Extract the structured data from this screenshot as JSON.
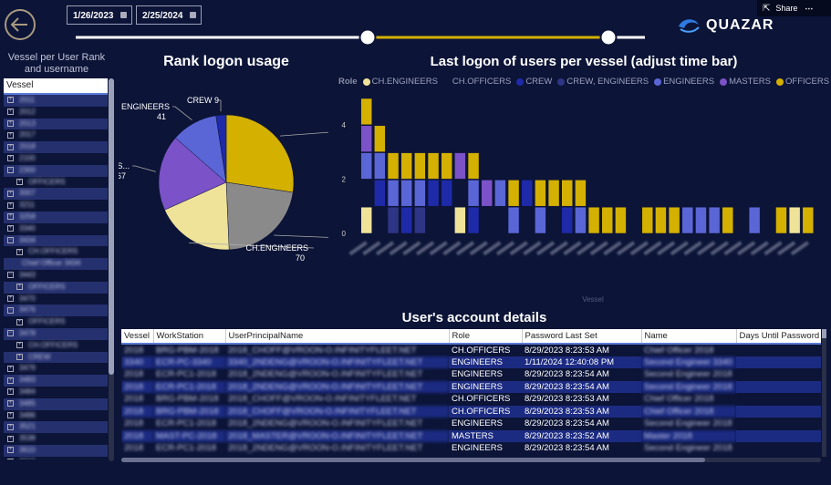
{
  "header": {
    "date_from": "1/26/2023",
    "date_to": "2/25/2024",
    "share_label": "Share",
    "more_label": "⋯",
    "logo_text": "QUAZAR",
    "timeline_start_fraction": 0.51,
    "timeline_end_fraction": 0.94
  },
  "slicer": {
    "title": "Vessel per User Rank and username",
    "header": "Vessel",
    "items": [
      {
        "label": "2011",
        "level": 0,
        "expanded": false
      },
      {
        "label": "2012",
        "level": 0,
        "expanded": false
      },
      {
        "label": "2013",
        "level": 0,
        "expanded": false
      },
      {
        "label": "2017",
        "level": 0,
        "expanded": false
      },
      {
        "label": "2018",
        "level": 0,
        "expanded": false
      },
      {
        "label": "2100",
        "level": 0,
        "expanded": false
      },
      {
        "label": "2300",
        "level": 0,
        "expanded": true
      },
      {
        "label": "OFFICERS",
        "level": 1,
        "expanded": false
      },
      {
        "label": "3007",
        "level": 0,
        "expanded": false
      },
      {
        "label": "3211",
        "level": 0,
        "expanded": false
      },
      {
        "label": "3258",
        "level": 0,
        "expanded": false
      },
      {
        "label": "3340",
        "level": 0,
        "expanded": false
      },
      {
        "label": "3434",
        "level": 0,
        "expanded": true
      },
      {
        "label": "CH.OFFICERS",
        "level": 1,
        "expanded": false
      },
      {
        "label": "Chief Officer 3434",
        "level": 2,
        "expanded": false
      },
      {
        "label": "3443",
        "level": 0,
        "expanded": true
      },
      {
        "label": "OFFICERS",
        "level": 1,
        "expanded": false
      },
      {
        "label": "3470",
        "level": 0,
        "expanded": false
      },
      {
        "label": "3476",
        "level": 0,
        "expanded": true
      },
      {
        "label": "OFFICERS",
        "level": 1,
        "expanded": false
      },
      {
        "label": "3478",
        "level": 0,
        "expanded": true
      },
      {
        "label": "CH.OFFICERS",
        "level": 1,
        "expanded": false
      },
      {
        "label": "CREW",
        "level": 1,
        "expanded": false
      },
      {
        "label": "3479",
        "level": 0,
        "expanded": false
      },
      {
        "label": "3483",
        "level": 0,
        "expanded": false
      },
      {
        "label": "3484",
        "level": 0,
        "expanded": false
      },
      {
        "label": "3485",
        "level": 0,
        "expanded": false
      },
      {
        "label": "3486",
        "level": 0,
        "expanded": false
      },
      {
        "label": "3521",
        "level": 0,
        "expanded": false
      },
      {
        "label": "3538",
        "level": 0,
        "expanded": false
      },
      {
        "label": "3610",
        "level": 0,
        "expanded": false
      },
      {
        "label": "3615",
        "level": 0,
        "expanded": false
      }
    ]
  },
  "colors": {
    "OFFICERS": "#d4b000",
    "CH.OFFICERS": "#8a8a8a",
    "CH.ENGINEERS": "#efe39a",
    "MASTERS": "#7b52c8",
    "ENGINEERS": "#5b66d6",
    "CREW": "#1e2aa8",
    "CREW, ENGINEERS": "#2f3585"
  },
  "chart_data": [
    {
      "type": "pie",
      "title": "Rank logon usage",
      "slices": [
        {
          "label": "OFFICERS",
          "display": "OFFICERS",
          "value": 101
        },
        {
          "label": "CH.OFFICERS",
          "display": "CH.OFFICERS",
          "value": 81
        },
        {
          "label": "CH.ENGINEERS",
          "display": "CH.ENGINEERS",
          "value": 70
        },
        {
          "label": "MASTERS",
          "display": "MAS...",
          "value": 67
        },
        {
          "label": "ENGINEERS",
          "display": "ENGINEERS",
          "value": 41
        },
        {
          "label": "CREW",
          "display": "CREW 9",
          "value": 9
        }
      ]
    },
    {
      "type": "bar",
      "title": "Last logon of users per vessel (adjust time bar)",
      "legend_title": "Role",
      "legend": [
        "CH.ENGINEERS",
        "CH.OFFICERS",
        "CREW",
        "CREW, ENGINEERS",
        "ENGINEERS",
        "MASTERS",
        "OFFICERS"
      ],
      "xlabel": "Vessel",
      "ylim": [
        0,
        5
      ],
      "yticks": [
        0,
        2,
        4
      ],
      "columns": [
        [
          "CH.ENGINEERS",
          null,
          "ENGINEERS",
          "MASTERS",
          "OFFICERS"
        ],
        [
          null,
          "CREW",
          "ENGINEERS",
          "OFFICERS"
        ],
        [
          "CREW, ENGINEERS",
          "ENGINEERS",
          "OFFICERS"
        ],
        [
          "CREW",
          "ENGINEERS",
          "OFFICERS"
        ],
        [
          "CREW, ENGINEERS",
          "ENGINEERS",
          "OFFICERS"
        ],
        [
          null,
          "CREW",
          "OFFICERS"
        ],
        [
          null,
          "CREW",
          "OFFICERS"
        ],
        [
          "CH.ENGINEERS",
          null,
          "MASTERS"
        ],
        [
          "CREW",
          "ENGINEERS",
          "OFFICERS"
        ],
        [
          null,
          "MASTERS"
        ],
        [
          null,
          "ENGINEERS"
        ],
        [
          "ENGINEERS",
          "OFFICERS"
        ],
        [
          null,
          "CREW"
        ],
        [
          "ENGINEERS",
          "OFFICERS"
        ],
        [
          null,
          "OFFICERS"
        ],
        [
          "CREW",
          "OFFICERS"
        ],
        [
          "ENGINEERS",
          "OFFICERS"
        ],
        [
          "OFFICERS"
        ],
        [
          "OFFICERS"
        ],
        [
          "OFFICERS"
        ],
        [],
        [
          "OFFICERS"
        ],
        [
          "OFFICERS"
        ],
        [
          "OFFICERS"
        ],
        [
          "ENGINEERS"
        ],
        [
          "ENGINEERS"
        ],
        [
          "ENGINEERS"
        ],
        [
          "OFFICERS"
        ],
        [],
        [
          "ENGINEERS"
        ],
        [],
        [
          "OFFICERS"
        ],
        [
          "CH.ENGINEERS"
        ],
        [
          "OFFICERS"
        ]
      ]
    }
  ],
  "table": {
    "title": "User's account details",
    "columns": [
      "Vessel",
      "WorkStation",
      "UserPrincipalName",
      "Role",
      "Password Last Set",
      "Name",
      "Days Until Password"
    ],
    "rows": [
      [
        "2018",
        "BRG-PBM-2018",
        "2018_CHOFF@VROON-O.INFINITYFLEET.NET",
        "CH.OFFICERS",
        "8/29/2023 8:23:53 AM",
        "Chief Officer 2018",
        ""
      ],
      [
        "3340",
        "ECR-PC-3340",
        "3340_2NDENG@VROON-O.INFINITYFLEET.NET",
        "ENGINEERS",
        "1/11/2024 12:40:08 PM",
        "Second Engineer 3340",
        ""
      ],
      [
        "2018",
        "ECR-PC1-2018",
        "2018_2NDENG@VROON-O.INFINITYFLEET.NET",
        "ENGINEERS",
        "8/29/2023 8:23:54 AM",
        "Second Engineer 2018",
        ""
      ],
      [
        "2018",
        "ECR-PC1-2018",
        "2018_2NDENG@VROON-O.INFINITYFLEET.NET",
        "ENGINEERS",
        "8/29/2023 8:23:54 AM",
        "Second Engineer 2018",
        ""
      ],
      [
        "2018",
        "BRG-PBM-2018",
        "2018_CHOFF@VROON-O.INFINITYFLEET.NET",
        "CH.OFFICERS",
        "8/29/2023 8:23:53 AM",
        "Chief Officer 2018",
        ""
      ],
      [
        "2018",
        "BRG-PBM-2018",
        "2018_CHOFF@VROON-O.INFINITYFLEET.NET",
        "CH.OFFICERS",
        "8/29/2023 8:23:53 AM",
        "Chief Officer 2018",
        ""
      ],
      [
        "2018",
        "ECR-PC1-2018",
        "2018_2NDENG@VROON-O.INFINITYFLEET.NET",
        "ENGINEERS",
        "8/29/2023 8:23:54 AM",
        "Second Engineer 2018",
        ""
      ],
      [
        "2018",
        "MAST-PC-2018",
        "2018_MASTER@VROON-O.INFINITYFLEET.NET",
        "MASTERS",
        "8/29/2023 8:23:52 AM",
        "Master 2018",
        ""
      ],
      [
        "2018",
        "ECR-PC1-2018",
        "2018_2NDENG@VROON-O.INFINITYFLEET.NET",
        "ENGINEERS",
        "8/29/2023 8:23:54 AM",
        "Second Engineer 2018",
        ""
      ]
    ]
  }
}
